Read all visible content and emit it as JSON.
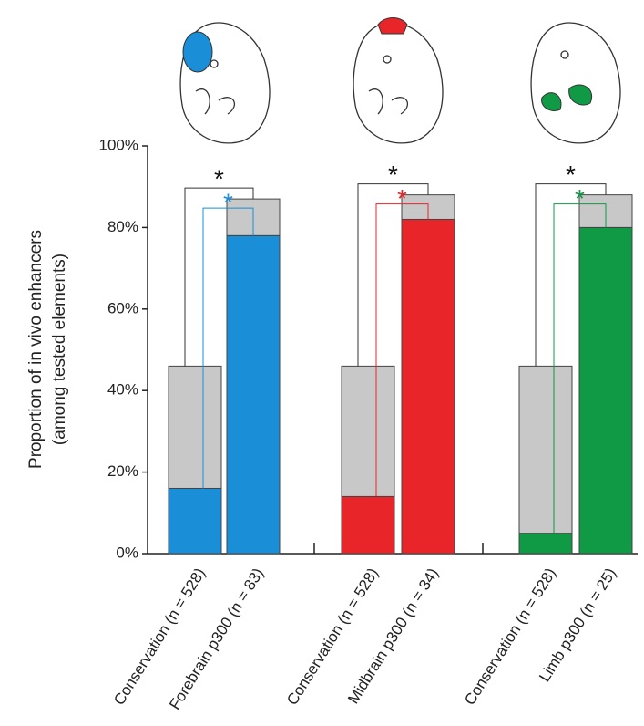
{
  "chart_data": {
    "type": "stacked-bar",
    "y_label_lines": [
      "Proportion of in vivo enhancers",
      "(among tested elements)"
    ],
    "categories": [
      "Conservation (n = 528)",
      "Forebrain p300 (n = 83)",
      "Conservation (n = 528)",
      "Midbrain p300 (n = 34)",
      "Conservation (n = 528)",
      "Limb p300 (n = 25)"
    ],
    "series": [
      {
        "colors": [
          "#1a8fd8",
          "#1a8fd8",
          "#e8262a",
          "#e8262a",
          "#119a45",
          "#119a45"
        ],
        "values": [
          16,
          78,
          14,
          82,
          5,
          80
        ]
      },
      {
        "color": "#c8c8c8",
        "values": [
          30,
          9,
          32,
          6,
          41,
          8
        ]
      }
    ],
    "annotations": [
      {
        "text": "*",
        "color": "#111111"
      },
      {
        "text": "*",
        "color": "#1a8fd8"
      },
      {
        "text": "*",
        "color": "#111111"
      },
      {
        "text": "*",
        "color": "#e8262a"
      },
      {
        "text": "*",
        "color": "#111111"
      },
      {
        "text": "*",
        "color": "#119a45"
      }
    ],
    "ylim": [
      0,
      100
    ],
    "yticks": [
      {
        "value": 0,
        "label": "0%"
      },
      {
        "value": 20,
        "label": "20%"
      },
      {
        "value": 40,
        "label": "40%"
      },
      {
        "value": 60,
        "label": "60%"
      },
      {
        "value": 80,
        "label": "80%"
      },
      {
        "value": 100,
        "label": "100%"
      }
    ]
  }
}
